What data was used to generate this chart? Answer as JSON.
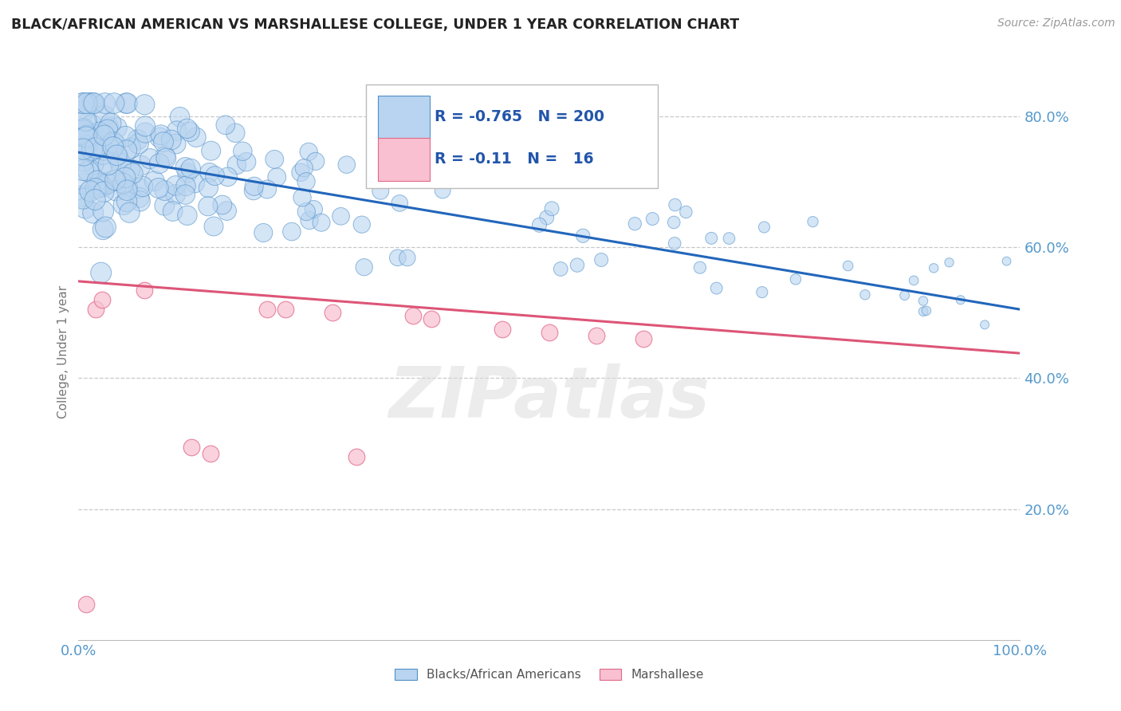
{
  "title": "BLACK/AFRICAN AMERICAN VS MARSHALLESE COLLEGE, UNDER 1 YEAR CORRELATION CHART",
  "source_text": "Source: ZipAtlas.com",
  "ylabel": "College, Under 1 year",
  "xmin": 0.0,
  "xmax": 1.0,
  "ymin": 0.0,
  "ymax": 0.88,
  "yticks": [
    0.2,
    0.4,
    0.6,
    0.8
  ],
  "ytick_labels": [
    "20.0%",
    "40.0%",
    "60.0%",
    "80.0%"
  ],
  "xtick_labels": [
    "0.0%",
    "100.0%"
  ],
  "blue_R": -0.765,
  "blue_N": 200,
  "pink_R": -0.11,
  "pink_N": 16,
  "blue_fill_color": "#b8d4f0",
  "blue_edge_color": "#5090c8",
  "pink_fill_color": "#f8c0d0",
  "pink_edge_color": "#e06888",
  "grid_color": "#bbbbbb",
  "title_color": "#222222",
  "axis_tick_color": "#5599cc",
  "watermark_color": "#dddddd",
  "legend_label_blue": "Blacks/African Americans",
  "legend_label_pink": "Marshallese",
  "blue_line_y0": 0.745,
  "blue_line_y1": 0.505,
  "pink_line_y0": 0.548,
  "pink_line_y1": 0.438,
  "blue_line_color": "#2266bb",
  "pink_line_color": "#dd5577"
}
